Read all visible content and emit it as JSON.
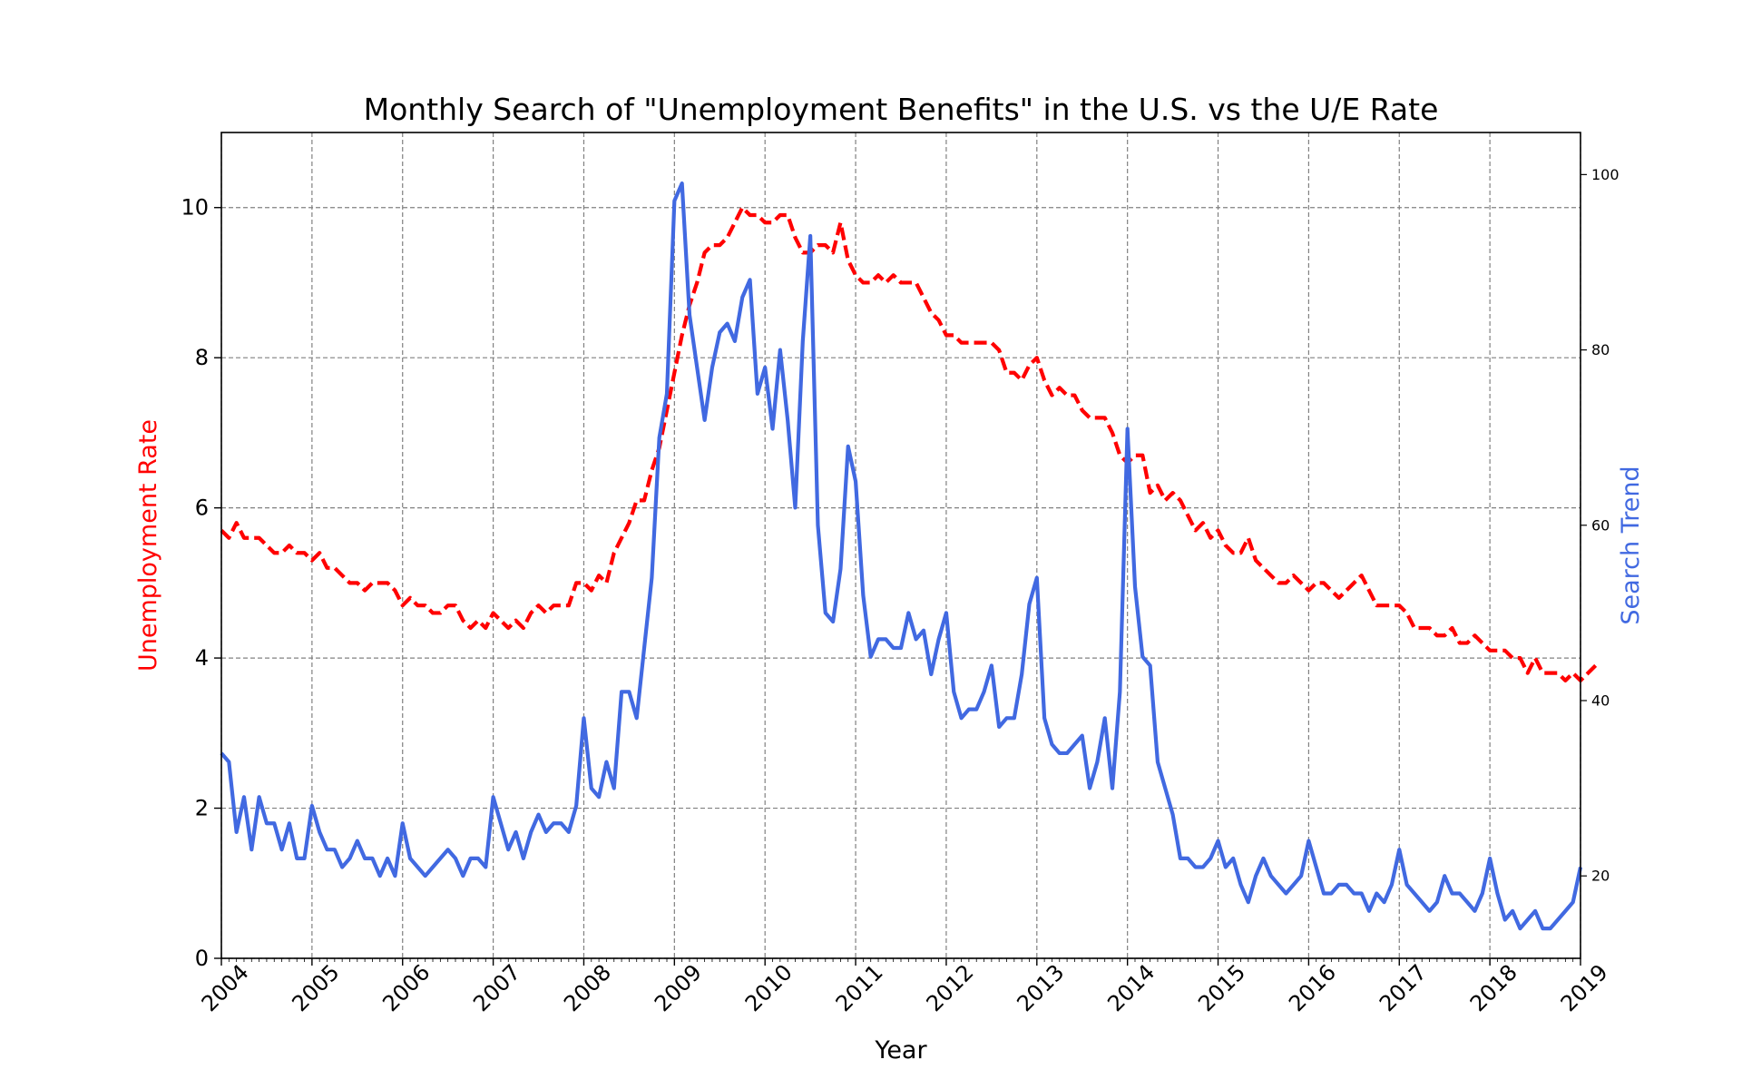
{
  "chart_data": {
    "type": "line",
    "title": "Monthly Search of \"Unemployment Benefits\" in the U.S. vs the U/E Rate",
    "xlabel": "Year",
    "ylabel_left": "Unemployment Rate",
    "ylabel_right": "Search Trend",
    "xlim": [
      2004,
      2019
    ],
    "ylim_left": [
      0,
      11
    ],
    "ylim_right": [
      10.6,
      104.8
    ],
    "x_ticks": [
      "2004",
      "2005",
      "2006",
      "2007",
      "2008",
      "2009",
      "2010",
      "2011",
      "2012",
      "2013",
      "2014",
      "2015",
      "2016",
      "2017",
      "2018",
      "2019"
    ],
    "y_ticks_left": [
      0,
      2,
      4,
      6,
      8,
      10
    ],
    "y_ticks_right": [
      20,
      40,
      60,
      80,
      100
    ],
    "grid": true,
    "series": [
      {
        "name": "Unemployment Rate",
        "axis": "left",
        "color": "#ff0000",
        "style": "dashed",
        "start": "2004-01",
        "values": [
          5.7,
          5.6,
          5.8,
          5.6,
          5.6,
          5.6,
          5.5,
          5.4,
          5.4,
          5.5,
          5.4,
          5.4,
          5.3,
          5.4,
          5.2,
          5.2,
          5.1,
          5.0,
          5.0,
          4.9,
          5.0,
          5.0,
          5.0,
          4.9,
          4.7,
          4.8,
          4.7,
          4.7,
          4.6,
          4.6,
          4.7,
          4.7,
          4.5,
          4.4,
          4.5,
          4.4,
          4.6,
          4.5,
          4.4,
          4.5,
          4.4,
          4.6,
          4.7,
          4.6,
          4.7,
          4.7,
          4.7,
          5.0,
          5.0,
          4.9,
          5.1,
          5.0,
          5.4,
          5.6,
          5.8,
          6.1,
          6.1,
          6.5,
          6.8,
          7.3,
          7.8,
          8.3,
          8.7,
          9.0,
          9.4,
          9.5,
          9.5,
          9.6,
          9.8,
          10.0,
          9.9,
          9.9,
          9.8,
          9.8,
          9.9,
          9.9,
          9.6,
          9.4,
          9.4,
          9.5,
          9.5,
          9.4,
          9.8,
          9.3,
          9.1,
          9.0,
          9.0,
          9.1,
          9.0,
          9.1,
          9.0,
          9.0,
          9.0,
          8.8,
          8.6,
          8.5,
          8.3,
          8.3,
          8.2,
          8.2,
          8.2,
          8.2,
          8.2,
          8.1,
          7.8,
          7.8,
          7.7,
          7.9,
          8.0,
          7.7,
          7.5,
          7.6,
          7.5,
          7.5,
          7.3,
          7.2,
          7.2,
          7.2,
          7.0,
          6.7,
          6.6,
          6.7,
          6.7,
          6.2,
          6.3,
          6.1,
          6.2,
          6.1,
          5.9,
          5.7,
          5.8,
          5.6,
          5.7,
          5.5,
          5.4,
          5.4,
          5.6,
          5.3,
          5.2,
          5.1,
          5.0,
          5.0,
          5.1,
          5.0,
          4.9,
          5.0,
          5.0,
          4.9,
          4.8,
          4.9,
          5.0,
          5.1,
          4.9,
          4.7,
          4.7,
          4.7,
          4.7,
          4.6,
          4.4,
          4.4,
          4.4,
          4.3,
          4.3,
          4.4,
          4.2,
          4.2,
          4.3,
          4.2,
          4.1,
          4.1,
          4.1,
          4.0,
          4.0,
          3.8,
          4.0,
          3.8,
          3.8,
          3.8,
          3.7,
          3.8,
          3.7,
          3.8,
          3.9
        ]
      },
      {
        "name": "Search Trend",
        "axis": "right",
        "color": "#4169e1",
        "style": "solid",
        "start": "2004-01",
        "values": [
          34,
          33,
          25,
          29,
          23,
          29,
          26,
          26,
          23,
          26,
          22,
          22,
          28,
          25,
          23,
          23,
          21,
          22,
          24,
          22,
          22,
          20,
          22,
          20,
          26,
          22,
          21,
          20,
          21,
          22,
          23,
          22,
          20,
          22,
          22,
          21,
          29,
          26,
          23,
          25,
          22,
          25,
          27,
          25,
          26,
          26,
          25,
          28,
          38,
          30,
          29,
          33,
          30,
          41,
          41,
          38,
          46,
          54,
          70,
          75,
          97,
          99,
          84,
          78,
          72,
          78,
          82,
          83,
          81,
          86,
          88,
          75,
          78,
          71,
          80,
          72,
          62,
          81,
          93,
          60,
          50,
          49,
          55,
          69,
          65,
          52,
          45,
          47,
          47,
          46,
          46,
          50,
          47,
          48,
          43,
          47,
          50,
          41,
          38,
          39,
          39,
          41,
          44,
          37,
          38,
          38,
          43,
          51,
          54,
          38,
          35,
          34,
          34,
          35,
          36,
          30,
          33,
          38,
          30,
          41,
          71,
          53,
          45,
          44,
          33,
          30,
          27,
          22,
          22,
          21,
          21,
          22,
          24,
          21,
          22,
          19,
          17,
          20,
          22,
          20,
          19,
          18,
          19,
          20,
          24,
          21,
          18,
          18,
          19,
          19,
          18,
          18,
          16,
          18,
          17,
          19,
          23,
          19,
          18,
          17,
          16,
          17,
          20,
          18,
          18,
          17,
          16,
          18,
          22,
          18,
          15,
          16,
          14,
          15,
          16,
          14,
          14,
          15,
          16,
          17,
          21
        ]
      }
    ]
  }
}
